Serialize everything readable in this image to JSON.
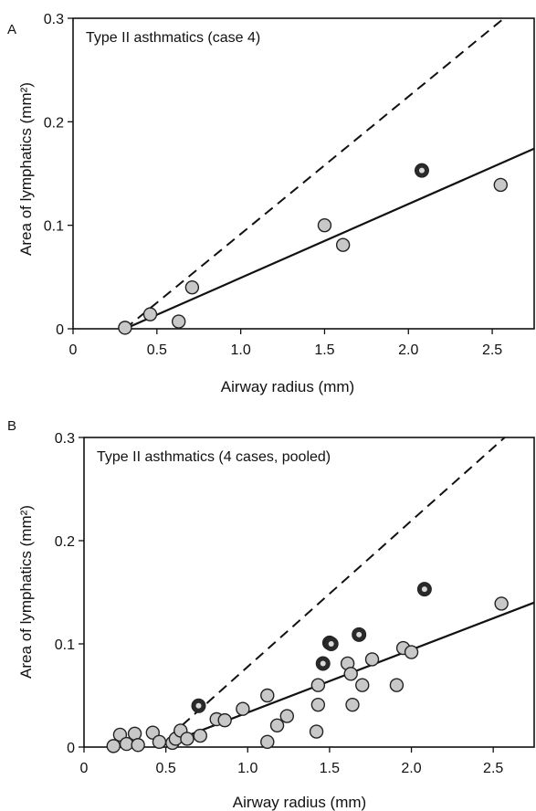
{
  "chart_data": [
    {
      "type": "scatter",
      "panel_label": "A",
      "title": "Type II asthmatics (case 4)",
      "xlabel": "Airway radius (mm)",
      "ylabel": "Area of lymphatics (mm²)",
      "xlim": [
        0,
        2.75
      ],
      "ylim": [
        0,
        0.3
      ],
      "x_ticks": [
        "0",
        "0.5",
        "1.0",
        "1.5",
        "2.0",
        "2.5"
      ],
      "x_tick_values": [
        0,
        0.5,
        1.0,
        1.5,
        2.0,
        2.5
      ],
      "y_ticks": [
        "0",
        "0.1",
        "0.2",
        "0.3"
      ],
      "y_tick_values": [
        0,
        0.1,
        0.2,
        0.3
      ],
      "grid": false,
      "points": [
        {
          "x": 0.31,
          "y": 0.001,
          "highlighted": false
        },
        {
          "x": 0.46,
          "y": 0.014,
          "highlighted": false
        },
        {
          "x": 0.63,
          "y": 0.007,
          "highlighted": false
        },
        {
          "x": 0.71,
          "y": 0.04,
          "highlighted": false
        },
        {
          "x": 1.5,
          "y": 0.1,
          "highlighted": false
        },
        {
          "x": 1.61,
          "y": 0.081,
          "highlighted": false
        },
        {
          "x": 2.08,
          "y": 0.153,
          "highlighted": true
        },
        {
          "x": 2.55,
          "y": 0.139,
          "highlighted": false
        }
      ],
      "fit_line": {
        "x": [
          0.31,
          2.75
        ],
        "y": [
          0.0,
          0.174
        ]
      },
      "dashed_line": {
        "x": [
          0.31,
          2.57
        ],
        "y": [
          0.0,
          0.3
        ]
      }
    },
    {
      "type": "scatter",
      "panel_label": "B",
      "title": "Type II asthmatics (4 cases, pooled)",
      "xlabel": "Airway radius (mm)",
      "ylabel": "Area of lymphatics (mm²)",
      "xlim": [
        0,
        2.75
      ],
      "ylim": [
        0,
        0.3
      ],
      "x_ticks": [
        "0",
        "0.5",
        "1.0",
        "1.5",
        "2.0",
        "2.5"
      ],
      "x_tick_values": [
        0,
        0.5,
        1.0,
        1.5,
        2.0,
        2.5
      ],
      "y_ticks": [
        "0",
        "0.1",
        "0.2",
        "0.3"
      ],
      "y_tick_values": [
        0,
        0.1,
        0.2,
        0.3
      ],
      "grid": false,
      "points": [
        {
          "x": 0.18,
          "y": 0.001,
          "highlighted": false
        },
        {
          "x": 0.22,
          "y": 0.012,
          "highlighted": false
        },
        {
          "x": 0.26,
          "y": 0.003,
          "highlighted": false
        },
        {
          "x": 0.31,
          "y": 0.013,
          "highlighted": false
        },
        {
          "x": 0.33,
          "y": 0.002,
          "highlighted": false
        },
        {
          "x": 0.42,
          "y": 0.014,
          "highlighted": false
        },
        {
          "x": 0.46,
          "y": 0.005,
          "highlighted": false
        },
        {
          "x": 0.54,
          "y": 0.004,
          "highlighted": false
        },
        {
          "x": 0.56,
          "y": 0.008,
          "highlighted": false
        },
        {
          "x": 0.59,
          "y": 0.016,
          "highlighted": false
        },
        {
          "x": 0.63,
          "y": 0.008,
          "highlighted": false
        },
        {
          "x": 0.7,
          "y": 0.04,
          "highlighted": true
        },
        {
          "x": 0.71,
          "y": 0.011,
          "highlighted": false
        },
        {
          "x": 0.81,
          "y": 0.027,
          "highlighted": false
        },
        {
          "x": 0.86,
          "y": 0.026,
          "highlighted": false
        },
        {
          "x": 0.97,
          "y": 0.037,
          "highlighted": false
        },
        {
          "x": 1.12,
          "y": 0.05,
          "highlighted": false
        },
        {
          "x": 1.12,
          "y": 0.005,
          "highlighted": false
        },
        {
          "x": 1.18,
          "y": 0.021,
          "highlighted": false
        },
        {
          "x": 1.24,
          "y": 0.03,
          "highlighted": false
        },
        {
          "x": 1.42,
          "y": 0.015,
          "highlighted": false
        },
        {
          "x": 1.43,
          "y": 0.041,
          "highlighted": false
        },
        {
          "x": 1.43,
          "y": 0.06,
          "highlighted": false
        },
        {
          "x": 1.46,
          "y": 0.081,
          "highlighted": true
        },
        {
          "x": 1.5,
          "y": 0.101,
          "highlighted": true
        },
        {
          "x": 1.51,
          "y": 0.1,
          "highlighted": true
        },
        {
          "x": 1.61,
          "y": 0.081,
          "highlighted": false
        },
        {
          "x": 1.63,
          "y": 0.071,
          "highlighted": false
        },
        {
          "x": 1.64,
          "y": 0.041,
          "highlighted": false
        },
        {
          "x": 1.68,
          "y": 0.109,
          "highlighted": true
        },
        {
          "x": 1.7,
          "y": 0.06,
          "highlighted": false
        },
        {
          "x": 1.76,
          "y": 0.085,
          "highlighted": false
        },
        {
          "x": 1.91,
          "y": 0.06,
          "highlighted": false
        },
        {
          "x": 1.95,
          "y": 0.096,
          "highlighted": false
        },
        {
          "x": 2.0,
          "y": 0.092,
          "highlighted": false
        },
        {
          "x": 2.08,
          "y": 0.153,
          "highlighted": true
        },
        {
          "x": 2.55,
          "y": 0.139,
          "highlighted": false
        }
      ],
      "fit_line": {
        "x": [
          0.45,
          2.75
        ],
        "y": [
          0.0,
          0.14
        ]
      },
      "dashed_line": {
        "x": [
          0.45,
          2.57
        ],
        "y": [
          0.0,
          0.3
        ]
      }
    }
  ],
  "colors": {
    "point_fill": "#c8c8c8",
    "point_stroke": "#222222",
    "highlight_fill": "#2a2a2a",
    "highlight_inner": "#d9d9d9",
    "line": "#111111"
  }
}
